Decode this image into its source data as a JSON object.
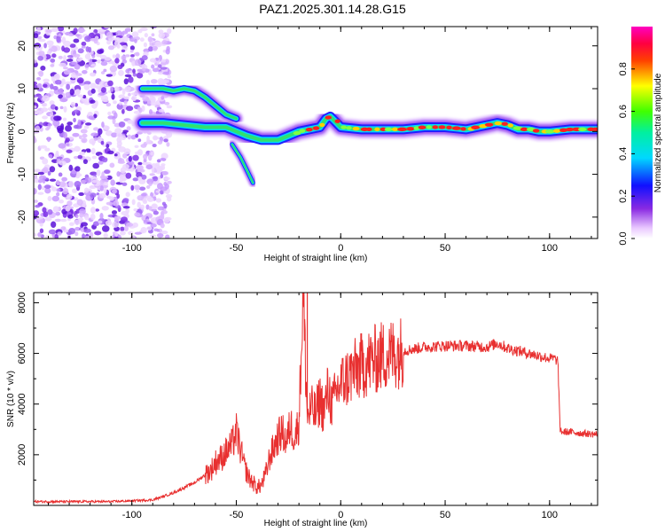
{
  "figure": {
    "title": "PAZ1.2025.301.14.28.G15"
  },
  "colors": {
    "snr_line": "#e83030",
    "frame": "#000000"
  },
  "chart_data": [
    {
      "type": "heatmap",
      "xlabel": "Height of straight line (km)",
      "ylabel": "Frequency (Hz)",
      "xlim": [
        -147,
        123
      ],
      "ylim": [
        -25,
        24.5
      ],
      "xticks": [
        -100,
        -50,
        0,
        50,
        100
      ],
      "yticks": [
        -20,
        -10,
        0,
        10,
        20
      ],
      "grid": false,
      "colorbar": {
        "label": "Normalized spectral amplitude",
        "range": [
          0,
          1
        ],
        "ticks": [
          0.0,
          0.2,
          0.4,
          0.6,
          0.8
        ],
        "colormap": "rainbow (white-violet-blue-cyan-green-yellow-red-magenta)"
      },
      "ridges": [
        {
          "name": "main",
          "points": [
            [
              -95,
              2
            ],
            [
              -85,
              2
            ],
            [
              -75,
              1.5
            ],
            [
              -65,
              1
            ],
            [
              -55,
              1
            ],
            [
              -45,
              -1
            ],
            [
              -38,
              -2
            ],
            [
              -30,
              -2
            ],
            [
              -25,
              -1
            ],
            [
              -20,
              0
            ],
            [
              -15,
              0.5
            ],
            [
              -10,
              1
            ],
            [
              -7,
              3
            ],
            [
              -5,
              3.5
            ],
            [
              -2,
              2
            ],
            [
              0,
              1
            ],
            [
              10,
              0.5
            ],
            [
              20,
              0.5
            ],
            [
              30,
              0.5
            ],
            [
              40,
              1
            ],
            [
              50,
              1
            ],
            [
              60,
              0.5
            ],
            [
              70,
              1.5
            ],
            [
              75,
              2
            ],
            [
              80,
              1.5
            ],
            [
              85,
              0.5
            ],
            [
              90,
              0.5
            ],
            [
              95,
              0
            ],
            [
              100,
              0
            ],
            [
              110,
              0.5
            ],
            [
              123,
              0.5
            ]
          ]
        },
        {
          "name": "upper",
          "points": [
            [
              -95,
              10
            ],
            [
              -85,
              10
            ],
            [
              -80,
              9.5
            ],
            [
              -75,
              10
            ],
            [
              -70,
              9.5
            ],
            [
              -65,
              8
            ],
            [
              -60,
              6
            ],
            [
              -55,
              4
            ],
            [
              -50,
              3
            ]
          ]
        },
        {
          "name": "lower-branch",
          "points": [
            [
              -52,
              -3
            ],
            [
              -48,
              -6
            ],
            [
              -45,
              -9
            ],
            [
              -43,
              -11
            ],
            [
              -42,
              -12
            ]
          ]
        }
      ]
    },
    {
      "type": "line",
      "xlabel": "Height of straight line (km)",
      "ylabel": "SNR (10 * v/v)",
      "xlim": [
        -147,
        123
      ],
      "ylim": [
        0,
        8400
      ],
      "xticks": [
        -100,
        -50,
        0,
        50,
        100
      ],
      "yticks": [
        2000,
        4000,
        6000,
        8000
      ],
      "grid": false,
      "series": [
        {
          "x": [
            -147,
            -130,
            -110,
            -100,
            -90,
            -85,
            -80,
            -75,
            -70,
            -65,
            -62,
            -60,
            -57,
            -55,
            -52,
            -50,
            -48,
            -46,
            -44,
            -42,
            -40,
            -38,
            -36,
            -34,
            -32,
            -30,
            -28,
            -26,
            -24,
            -22,
            -20,
            -18,
            -16,
            -14,
            -12,
            -10,
            -8,
            -6,
            -4,
            -2,
            0,
            5,
            10,
            15,
            20,
            25,
            30,
            40,
            50,
            60,
            70,
            75,
            80,
            85,
            90,
            95,
            100,
            102,
            104,
            105,
            106,
            110,
            115,
            123
          ],
          "y": [
            150,
            150,
            150,
            180,
            220,
            350,
            500,
            700,
            900,
            1200,
            1400,
            1700,
            1900,
            2100,
            2400,
            2900,
            2200,
            1500,
            1100,
            900,
            700,
            800,
            1200,
            1900,
            2300,
            2700,
            2900,
            2500,
            3200,
            2700,
            3300,
            8400,
            3500,
            3800,
            3600,
            4200,
            3700,
            4600,
            3900,
            4500,
            4800,
            5200,
            5500,
            5700,
            5900,
            6000,
            6100,
            6250,
            6300,
            6300,
            6250,
            6400,
            6200,
            6100,
            6000,
            5900,
            5800,
            5800,
            5700,
            3000,
            2900,
            2900,
            2850,
            2800
          ]
        }
      ]
    }
  ]
}
